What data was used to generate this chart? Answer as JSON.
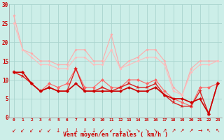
{
  "x": [
    0,
    1,
    2,
    3,
    4,
    5,
    6,
    7,
    8,
    9,
    10,
    11,
    12,
    13,
    14,
    15,
    16,
    17,
    18,
    19,
    20,
    21,
    22,
    23
  ],
  "bg_color": "#cceee8",
  "grid_color": "#aad4ce",
  "xlabel": "Vent moyen/en rafales ( km/h )",
  "ylim": [
    0,
    30
  ],
  "xlim": [
    -0.5,
    23.5
  ],
  "yticks": [
    0,
    5,
    10,
    15,
    20,
    25,
    30
  ],
  "line_light1": {
    "color": "#ffaaaa",
    "data": [
      27,
      18,
      17,
      15,
      15,
      14,
      14,
      18,
      18,
      15,
      15,
      22,
      13,
      15,
      16,
      18,
      18,
      15,
      8,
      6,
      13,
      15,
      15,
      15
    ]
  },
  "line_light2": {
    "color": "#ffbbbb",
    "data": [
      25,
      18,
      16,
      14,
      14,
      13,
      13,
      16,
      16,
      14,
      14,
      18,
      13,
      14,
      15,
      16,
      16,
      14,
      7,
      6,
      12,
      14,
      14,
      15
    ]
  },
  "line_medium1": {
    "color": "#ff6666",
    "data": [
      12,
      12,
      9,
      7,
      9,
      8,
      9,
      13,
      8,
      8,
      10,
      8,
      8,
      10,
      10,
      9,
      10,
      7,
      5,
      4,
      3,
      8,
      8,
      9
    ]
  },
  "line_medium2": {
    "color": "#dd2222",
    "data": [
      12,
      11,
      9,
      7,
      8,
      7,
      7,
      13,
      7,
      7,
      8,
      7,
      8,
      9,
      8,
      8,
      9,
      6,
      4,
      3,
      3,
      7,
      1,
      9
    ]
  },
  "line_dark": {
    "color": "#cc0000",
    "data": [
      12,
      12,
      9,
      7,
      8,
      7,
      7,
      9,
      7,
      7,
      7,
      7,
      7,
      8,
      7,
      7,
      8,
      6,
      5,
      5,
      4,
      5,
      1,
      9
    ]
  },
  "arrow_chars": [
    "↙",
    "↙",
    "↙",
    "↙",
    "↙",
    "↓",
    "↓",
    "↓",
    "↓",
    "↓",
    "↙",
    "↙",
    "↓",
    "↘",
    "↘",
    "↘",
    "↘",
    "↗",
    "↗",
    "↗",
    "↗",
    "→",
    "↖",
    "↖"
  ]
}
